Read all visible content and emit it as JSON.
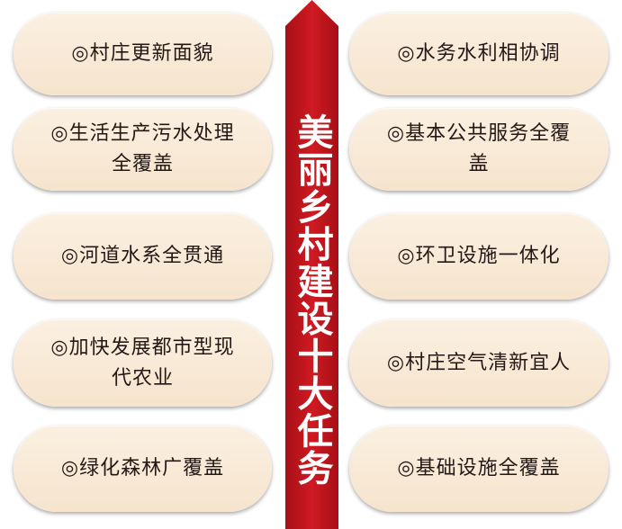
{
  "center_title": "美丽乡村建设十大任务",
  "tasks": {
    "left": [
      "◎村庄更新面貌",
      "◎生活生产污水处理\n全覆盖",
      "◎河道水系全贯通",
      "◎加快发展都市型现\n代农业",
      "◎绿化森林广覆盖"
    ],
    "right": [
      "◎水务水利相协调",
      "◎基本公共服务全覆\n盖",
      "◎环卫设施一体化",
      "◎村庄空气清新宜人",
      "◎基础设施全覆盖"
    ]
  },
  "colors": {
    "banner_red": "#c1121a",
    "pill_fill": "#f8e8d3",
    "text": "#231815"
  }
}
